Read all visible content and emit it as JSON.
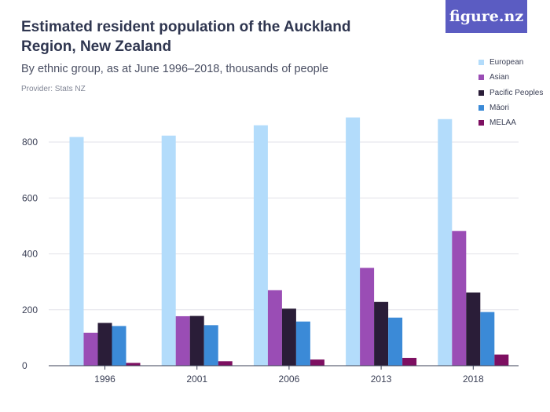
{
  "title": "Estimated resident population of the Auckland Region, New Zealand",
  "subtitle": "By ethnic group, as at June 1996–2018, thousands of people",
  "provider": "Provider: Stats NZ",
  "logo_text": "figure.nz",
  "chart_data": {
    "type": "bar",
    "categories": [
      "1996",
      "2001",
      "2006",
      "2013",
      "2018"
    ],
    "series": [
      {
        "name": "European",
        "color": "#b3dcfb",
        "values": [
          818,
          823,
          860,
          888,
          882
        ]
      },
      {
        "name": "Asian",
        "color": "#9a4db5",
        "values": [
          118,
          177,
          270,
          350,
          482
        ]
      },
      {
        "name": "Pacific Peoples",
        "color": "#2a1d38",
        "values": [
          153,
          178,
          204,
          228,
          262
        ]
      },
      {
        "name": "Māori",
        "color": "#3b8ad7",
        "values": [
          142,
          145,
          158,
          172,
          192
        ]
      },
      {
        "name": "MELAA",
        "color": "#7d0f61",
        "values": [
          10,
          16,
          22,
          28,
          40
        ]
      }
    ],
    "yticks": [
      "0",
      "200",
      "400",
      "600",
      "800"
    ],
    "ylim": [
      0,
      900
    ],
    "grid": true,
    "legend_position": "top-right",
    "xlabel": "",
    "ylabel": ""
  }
}
